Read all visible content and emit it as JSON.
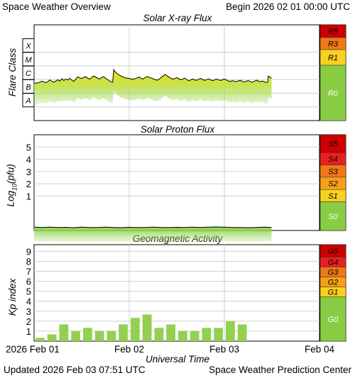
{
  "header": {
    "title": "Space Weather Overview",
    "begin": "Begin 2026 02 01 00:00 UTC"
  },
  "footer": {
    "updated": "Updated 2026 Feb 03 07:51 UTC",
    "credit": "Space Weather Prediction Center"
  },
  "chart_data": [
    {
      "type": "line",
      "title": "Solar X-ray Flux",
      "ylabel": "Flare Class",
      "x_unit": "hours since 2026 Feb 01 00:00 UTC",
      "xlim": [
        0,
        72
      ],
      "y_scale": "log",
      "ylim_log10_W_m2": [
        -9,
        -2
      ],
      "class_ticks": [
        {
          "label": "A",
          "log10": -8
        },
        {
          "label": "B",
          "log10": -7
        },
        {
          "label": "C",
          "log10": -6
        },
        {
          "label": "M",
          "log10": -5
        },
        {
          "label": "X",
          "log10": -4
        }
      ],
      "x_log10": [
        [
          0,
          -6.28
        ],
        [
          1,
          -6.24
        ],
        [
          1.5,
          -6.18
        ],
        [
          2,
          -6.13
        ],
        [
          2.5,
          -6.18
        ],
        [
          3,
          -6.22
        ],
        [
          3.5,
          -6.15
        ],
        [
          4,
          -6.03
        ],
        [
          4.5,
          -6.12
        ],
        [
          5,
          -6.2
        ],
        [
          5.5,
          -6.1
        ],
        [
          6,
          -6.02
        ],
        [
          6.5,
          -6.12
        ],
        [
          7,
          -5.94
        ],
        [
          7.5,
          -6.07
        ],
        [
          8,
          -5.96
        ],
        [
          8.5,
          -6.03
        ],
        [
          9,
          -5.91
        ],
        [
          9.5,
          -6.04
        ],
        [
          10,
          -6.14
        ],
        [
          10.5,
          -5.98
        ],
        [
          11,
          -5.8
        ],
        [
          11.5,
          -5.87
        ],
        [
          12,
          -5.93
        ],
        [
          12.5,
          -5.84
        ],
        [
          13,
          -5.79
        ],
        [
          13.5,
          -5.9
        ],
        [
          14,
          -5.97
        ],
        [
          14.5,
          -5.86
        ],
        [
          15,
          -5.74
        ],
        [
          15.5,
          -5.81
        ],
        [
          16,
          -5.89
        ],
        [
          16.5,
          -5.96
        ],
        [
          17,
          -5.85
        ],
        [
          17.5,
          -5.79
        ],
        [
          18,
          -5.9
        ],
        [
          18.5,
          -6.0
        ],
        [
          19,
          -6.1
        ],
        [
          19.5,
          -6.16
        ],
        [
          19.8,
          -6.2
        ],
        [
          20.0,
          -5.6
        ],
        [
          20.1,
          -5.28
        ],
        [
          20.5,
          -5.45
        ],
        [
          21,
          -5.58
        ],
        [
          21.5,
          -5.68
        ],
        [
          22,
          -5.76
        ],
        [
          22.5,
          -5.82
        ],
        [
          23,
          -5.88
        ],
        [
          23.5,
          -5.9
        ],
        [
          24,
          -5.92
        ],
        [
          24.5,
          -5.95
        ],
        [
          25,
          -5.98
        ],
        [
          25.5,
          -5.93
        ],
        [
          26,
          -5.88
        ],
        [
          26.5,
          -5.82
        ],
        [
          27,
          -5.92
        ],
        [
          27.5,
          -5.96
        ],
        [
          28,
          -5.86
        ],
        [
          28.5,
          -5.78
        ],
        [
          29,
          -5.84
        ],
        [
          29.5,
          -5.88
        ],
        [
          30,
          -5.94
        ],
        [
          30.5,
          -6.0
        ],
        [
          31,
          -6.05
        ],
        [
          31.5,
          -5.98
        ],
        [
          32,
          -5.86
        ],
        [
          32.5,
          -5.75
        ],
        [
          33,
          -5.63
        ],
        [
          33.5,
          -5.72
        ],
        [
          34,
          -5.82
        ],
        [
          34.5,
          -5.9
        ],
        [
          35,
          -5.98
        ],
        [
          35.5,
          -5.92
        ],
        [
          36,
          -5.86
        ],
        [
          36.5,
          -5.94
        ],
        [
          37,
          -6.02
        ],
        [
          37.5,
          -5.96
        ],
        [
          38,
          -5.9
        ],
        [
          38.5,
          -6.0
        ],
        [
          39,
          -6.1
        ],
        [
          39.5,
          -6.03
        ],
        [
          40,
          -5.96
        ],
        [
          40.5,
          -6.02
        ],
        [
          41,
          -6.06
        ],
        [
          41.5,
          -5.98
        ],
        [
          42,
          -5.92
        ],
        [
          42.5,
          -5.99
        ],
        [
          43,
          -6.06
        ],
        [
          43.5,
          -6.01
        ],
        [
          44,
          -5.95
        ],
        [
          44.5,
          -6.02
        ],
        [
          45,
          -6.08
        ],
        [
          45.5,
          -6.03
        ],
        [
          46,
          -5.96
        ],
        [
          46.5,
          -6.01
        ],
        [
          47,
          -6.07
        ],
        [
          47.5,
          -6.02
        ],
        [
          48,
          -5.96
        ],
        [
          48.5,
          -6.03
        ],
        [
          49,
          -6.1
        ],
        [
          49.5,
          -6.14
        ],
        [
          50,
          -6.08
        ],
        [
          50.5,
          -6.12
        ],
        [
          51,
          -6.16
        ],
        [
          51.5,
          -6.1
        ],
        [
          52,
          -6.05
        ],
        [
          52.5,
          -6.12
        ],
        [
          53,
          -6.18
        ],
        [
          53.5,
          -6.12
        ],
        [
          54,
          -6.08
        ],
        [
          54.5,
          -6.14
        ],
        [
          55,
          -6.2
        ],
        [
          55.5,
          -6.14
        ],
        [
          56,
          -6.04
        ],
        [
          56.5,
          -6.1
        ],
        [
          57,
          -6.16
        ],
        [
          57.5,
          -6.11
        ],
        [
          58,
          -6.15
        ],
        [
          58.5,
          -6.22
        ],
        [
          58.9,
          -6.2
        ],
        [
          59.1,
          -5.74
        ],
        [
          59.5,
          -5.82
        ],
        [
          59.9,
          -5.9
        ]
      ],
      "scale_levels": [
        {
          "label": "R5",
          "color": "#cc0000"
        },
        {
          "label": "R3",
          "color": "#f07818"
        },
        {
          "label": "R1",
          "color": "#f8d020"
        },
        {
          "label": "R0",
          "color": "#88cc44"
        }
      ]
    },
    {
      "type": "line",
      "title": "Solar Proton Flux",
      "ylabel": "Log10(pfu)",
      "xlim": [
        0,
        72
      ],
      "ylim": [
        -1.8,
        6
      ],
      "yticks": [
        1,
        2,
        3,
        4,
        5
      ],
      "p_values": [
        [
          0,
          -1.53
        ],
        [
          2,
          -1.56
        ],
        [
          4,
          -1.52
        ],
        [
          6,
          -1.55
        ],
        [
          8,
          -1.54
        ],
        [
          10,
          -1.57
        ],
        [
          12,
          -1.53
        ],
        [
          14,
          -1.55
        ],
        [
          16,
          -1.56
        ],
        [
          18,
          -1.53
        ],
        [
          20,
          -1.55
        ],
        [
          22,
          -1.57
        ],
        [
          24,
          -1.54
        ],
        [
          26,
          -1.56
        ],
        [
          28,
          -1.55
        ],
        [
          30,
          -1.53
        ],
        [
          32,
          -1.55
        ],
        [
          34,
          -1.56
        ],
        [
          36,
          -1.54
        ],
        [
          38,
          -1.55
        ],
        [
          40,
          -1.53
        ],
        [
          42,
          -1.56
        ],
        [
          44,
          -1.52
        ],
        [
          46,
          -1.51
        ],
        [
          48,
          -1.53
        ],
        [
          50,
          -1.55
        ],
        [
          52,
          -1.56
        ],
        [
          54,
          -1.57
        ],
        [
          56,
          -1.55
        ],
        [
          58,
          -1.53
        ],
        [
          59.9,
          -1.55
        ]
      ],
      "scale_levels": [
        {
          "label": "S5",
          "color": "#cc0000"
        },
        {
          "label": "S4",
          "color": "#e82020"
        },
        {
          "label": "S3",
          "color": "#f07818"
        },
        {
          "label": "S2",
          "color": "#f8a018"
        },
        {
          "label": "S1",
          "color": "#f8d020"
        },
        {
          "label": "S0",
          "color": "#88cc44"
        }
      ]
    },
    {
      "type": "bar",
      "title": "Geomagnetic Activity",
      "ylabel": "Kp index",
      "xlabel": "Universal Time",
      "ylim": [
        0,
        9.67
      ],
      "yticks": [
        1,
        2,
        3,
        4,
        5,
        6,
        7,
        8,
        9
      ],
      "bar_hours": 3,
      "kp_values": [
        0.33,
        0.67,
        1.67,
        1.0,
        1.33,
        1.0,
        1.0,
        1.67,
        2.33,
        2.67,
        1.33,
        1.67,
        1.0,
        1.0,
        1.33,
        1.33,
        2.0,
        1.67
      ],
      "bar_color": "#92d050",
      "xticks": [
        {
          "label": "2026 Feb 01",
          "hours": 0
        },
        {
          "label": "Feb 02",
          "hours": 24
        },
        {
          "label": "Feb 03",
          "hours": 48
        },
        {
          "label": "Feb 04",
          "hours": 72
        }
      ],
      "scale_levels": [
        {
          "label": "G5",
          "color": "#cc0000"
        },
        {
          "label": "G4",
          "color": "#e82020"
        },
        {
          "label": "G3",
          "color": "#f07818"
        },
        {
          "label": "G2",
          "color": "#f8a018"
        },
        {
          "label": "G1",
          "color": "#f8d020"
        },
        {
          "label": "G0",
          "color": "#88cc44"
        }
      ]
    }
  ]
}
